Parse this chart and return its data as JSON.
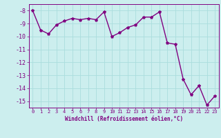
{
  "x": [
    0,
    1,
    2,
    3,
    4,
    5,
    6,
    7,
    8,
    9,
    10,
    11,
    12,
    13,
    14,
    15,
    16,
    17,
    18,
    19,
    20,
    21,
    22,
    23
  ],
  "y": [
    -8.0,
    -9.5,
    -9.8,
    -9.1,
    -8.8,
    -8.6,
    -8.7,
    -8.6,
    -8.7,
    -8.1,
    -10.0,
    -9.7,
    -9.3,
    -9.1,
    -8.5,
    -8.5,
    -8.1,
    -10.5,
    -10.6,
    -13.3,
    -14.5,
    -13.8,
    -15.3,
    -14.6
  ],
  "line_color": "#800080",
  "marker": "*",
  "bg_color": "#cceeee",
  "grid_color": "#aadddd",
  "xlabel": "Windchill (Refroidissement éolien,°C)",
  "ylim": [
    -15.5,
    -7.5
  ],
  "xlim": [
    -0.5,
    23.5
  ],
  "yticks": [
    -8,
    -9,
    -10,
    -11,
    -12,
    -13,
    -14,
    -15
  ],
  "xticks": [
    0,
    1,
    2,
    3,
    4,
    5,
    6,
    7,
    8,
    9,
    10,
    11,
    12,
    13,
    14,
    15,
    16,
    17,
    18,
    19,
    20,
    21,
    22,
    23
  ],
  "xtick_labels": [
    "0",
    "1",
    "2",
    "3",
    "4",
    "5",
    "6",
    "7",
    "8",
    "9",
    "10",
    "11",
    "12",
    "13",
    "14",
    "15",
    "16",
    "17",
    "18",
    "19",
    "20",
    "21",
    "22",
    "23"
  ]
}
